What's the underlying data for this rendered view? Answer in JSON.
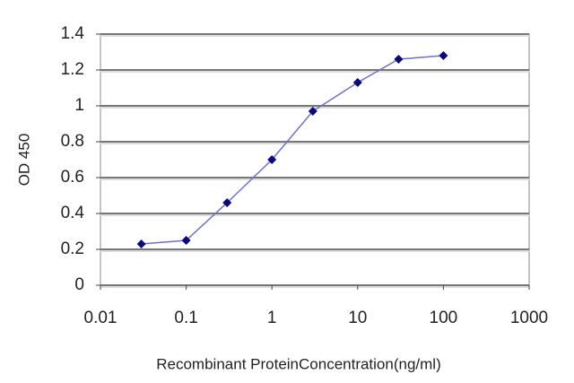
{
  "chart_data": {
    "type": "line",
    "xlabel": "Recombinant ProteinConcentration(ng/ml)",
    "ylabel": "OD 450",
    "x": [
      0.03,
      0.1,
      0.3,
      1,
      3,
      10,
      30,
      100
    ],
    "values": [
      0.23,
      0.25,
      0.46,
      0.7,
      0.97,
      1.13,
      1.26,
      1.28
    ],
    "color": "#6f6fd0",
    "marker_color": "#0a0a80",
    "xscale": "log",
    "xlim": [
      0.01,
      1000
    ],
    "xticks": [
      0.01,
      0.1,
      1,
      10,
      100,
      1000
    ],
    "ylim": [
      0,
      1.4
    ],
    "yticks": [
      0,
      0.2,
      0.4,
      0.6,
      0.8,
      1,
      1.2,
      1.4
    ],
    "grid": true
  }
}
